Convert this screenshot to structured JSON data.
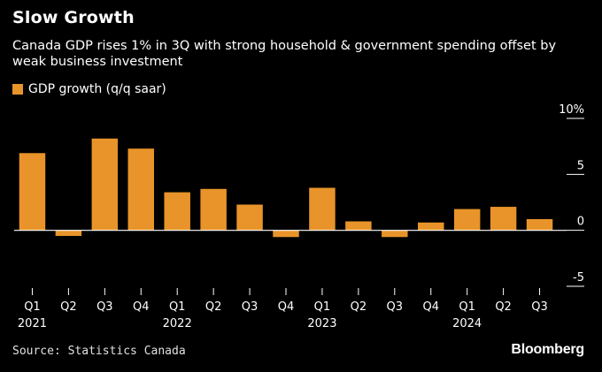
{
  "header": {
    "title": "Slow Growth",
    "subtitle": "Canada GDP rises 1% in 3Q with strong household & government spending offset by weak business investment"
  },
  "footer": {
    "source": "Source: Statistics Canada",
    "brand": "Bloomberg"
  },
  "chart_data": {
    "type": "bar",
    "categories": [
      "Q1",
      "Q2",
      "Q3",
      "Q4",
      "Q1",
      "Q2",
      "Q3",
      "Q4",
      "Q1",
      "Q2",
      "Q3",
      "Q4",
      "Q1",
      "Q2",
      "Q3"
    ],
    "year_labels": [
      {
        "index": 0,
        "label": "2021"
      },
      {
        "index": 4,
        "label": "2022"
      },
      {
        "index": 8,
        "label": "2023"
      },
      {
        "index": 12,
        "label": "2024"
      }
    ],
    "series": [
      {
        "name": "GDP growth (q/q saar)",
        "color": "#e8942a",
        "values": [
          6.9,
          -0.5,
          8.2,
          7.3,
          3.4,
          3.7,
          2.3,
          -0.6,
          3.8,
          0.8,
          -0.6,
          0.7,
          1.9,
          2.1,
          1.0
        ]
      }
    ],
    "yticks": [
      {
        "value": 10,
        "label": "10%"
      },
      {
        "value": 5,
        "label": "5"
      },
      {
        "value": 0,
        "label": "0"
      },
      {
        "value": -5,
        "label": "-5"
      }
    ],
    "ylim": [
      -5,
      10
    ],
    "legend_position": "top-left"
  }
}
